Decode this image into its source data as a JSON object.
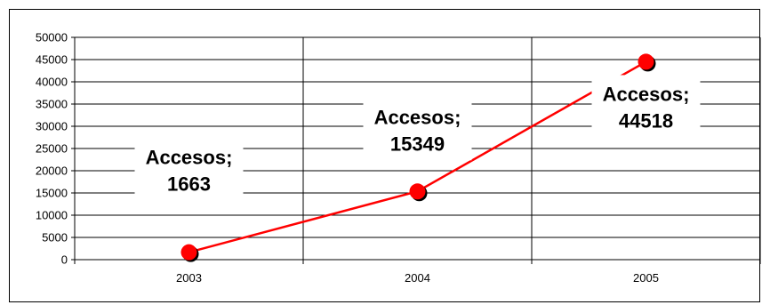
{
  "chart_data": {
    "type": "line",
    "title": "",
    "xlabel": "",
    "ylabel": "",
    "categories": [
      "2003",
      "2004",
      "2005"
    ],
    "series": [
      {
        "values": [
          1663,
          15349,
          44518
        ],
        "color": "#ff0000",
        "data_labels": [
          {
            "line1": "Accesos;",
            "line2": "1663"
          },
          {
            "line1": "Accesos;",
            "line2": "15349"
          },
          {
            "line1": "Accesos;",
            "line2": "44518"
          }
        ]
      }
    ],
    "ylim": [
      0,
      50000
    ],
    "y_ticks": [
      "0",
      "5000",
      "10000",
      "15000",
      "20000",
      "25000",
      "30000",
      "35000",
      "40000",
      "45000",
      "50000"
    ],
    "grid": true,
    "legend": "none",
    "marker_color": "#ff0000",
    "marker_shadow_color": "#000000",
    "line_color": "#ff0000"
  }
}
